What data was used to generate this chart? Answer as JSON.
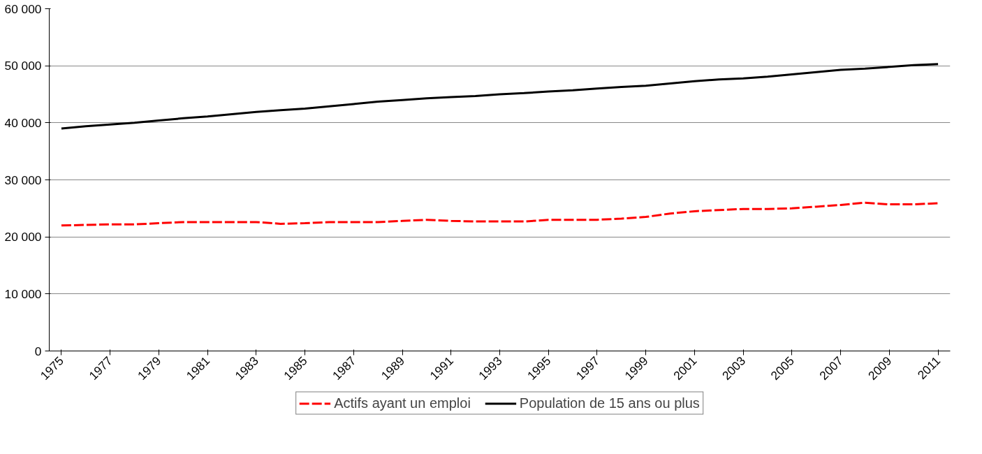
{
  "chart_data": {
    "type": "line",
    "categories": [
      "1975",
      null,
      "1977",
      null,
      "1979",
      null,
      "1981",
      null,
      "1983",
      null,
      "1985",
      null,
      "1987",
      null,
      "1989",
      null,
      "1991",
      null,
      "1993",
      null,
      "1995",
      null,
      "1997",
      null,
      "1999",
      null,
      "2001",
      null,
      "2003",
      null,
      "2005",
      null,
      "2007",
      null,
      "2009",
      null,
      "2011"
    ],
    "series": [
      {
        "name": "Actifs ayant un emploi",
        "color": "#ff0000",
        "line_style": "dashed",
        "values": [
          22000,
          22100,
          22200,
          22200,
          22400,
          22600,
          22600,
          22600,
          22600,
          22300,
          22400,
          22600,
          22600,
          22600,
          22800,
          23000,
          22800,
          22700,
          22700,
          22700,
          23000,
          23000,
          23000,
          23200,
          23500,
          24100,
          24500,
          24700,
          24900,
          24900,
          25000,
          25300,
          25600,
          26000,
          25700,
          25700,
          25900
        ]
      },
      {
        "name": "Population de 15 ans ou plus",
        "color": "#000000",
        "line_style": "solid",
        "values": [
          39000,
          39400,
          39700,
          40000,
          40400,
          40800,
          41100,
          41500,
          41900,
          42200,
          42500,
          42900,
          43300,
          43700,
          44000,
          44300,
          44500,
          44700,
          45000,
          45200,
          45500,
          45700,
          46000,
          46300,
          46500,
          46900,
          47300,
          47600,
          47800,
          48100,
          48500,
          48900,
          49300,
          49500,
          49800,
          50100,
          50300
        ]
      }
    ],
    "ylim": [
      0,
      60000
    ],
    "yticks": [
      0,
      {
        "value": 10000,
        "label": "10 000"
      },
      {
        "value": 20000,
        "label": "20 000"
      },
      {
        "value": 30000,
        "label": "30 000"
      },
      {
        "value": 40000,
        "label": "40 000"
      },
      {
        "value": 50000,
        "label": "50 000"
      },
      {
        "value": 60000,
        "label": "60 000"
      }
    ],
    "grid": "y",
    "legend": "bottom",
    "marker": "none"
  }
}
